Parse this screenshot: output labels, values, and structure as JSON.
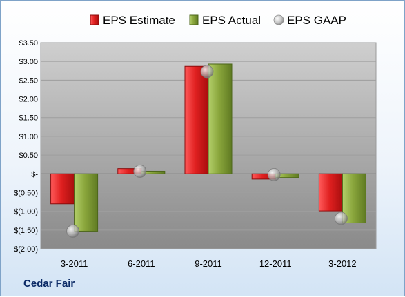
{
  "company": "Cedar Fair",
  "legend": [
    {
      "label": "EPS Estimate",
      "key": "estimate"
    },
    {
      "label": "EPS Actual",
      "key": "actual"
    },
    {
      "label": "EPS GAAP",
      "key": "gaap"
    }
  ],
  "colors": {
    "estimate": "#d41e1e",
    "actual": "#8aa63c",
    "gaap": "#a9a9a9",
    "plot_top": "#cccccc",
    "plot_bottom": "#8c8c8c"
  },
  "y_ticks": [
    "$3.50",
    "$3.00",
    "$2.50",
    "$2.00",
    "$1.50",
    "$1.00",
    "$0.50",
    "$-",
    "$(0.50)",
    "$(1.00)",
    "$(1.50)",
    "$(2.00)"
  ],
  "chart_data": {
    "type": "bar",
    "categories": [
      "3-2011",
      "6-2011",
      "9-2011",
      "12-2011",
      "3-2012"
    ],
    "series": [
      {
        "name": "EPS Estimate",
        "values": [
          -0.8,
          0.14,
          2.87,
          -0.14,
          -0.99
        ]
      },
      {
        "name": "EPS Actual",
        "values": [
          -1.53,
          0.07,
          2.93,
          -0.1,
          -1.31
        ]
      },
      {
        "name": "EPS GAAP",
        "values": [
          -1.53,
          0.07,
          2.73,
          -0.02,
          -1.19
        ]
      }
    ],
    "ylim": [
      -2.0,
      3.5
    ],
    "ytick_step": 0.5,
    "grid": true,
    "legend_position": "top"
  }
}
